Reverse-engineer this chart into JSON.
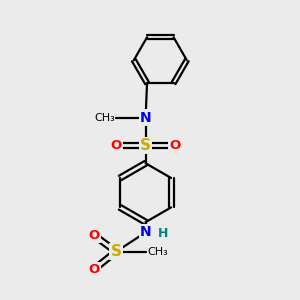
{
  "background_color": "#ebebeb",
  "atom_colors": {
    "C": "#000000",
    "N": "#0000ee",
    "S": "#ccaa00",
    "O": "#ff0000",
    "H": "#008080"
  },
  "bond_color": "#000000",
  "bond_width": 1.6,
  "figsize": [
    3.0,
    3.0
  ],
  "dpi": 100
}
